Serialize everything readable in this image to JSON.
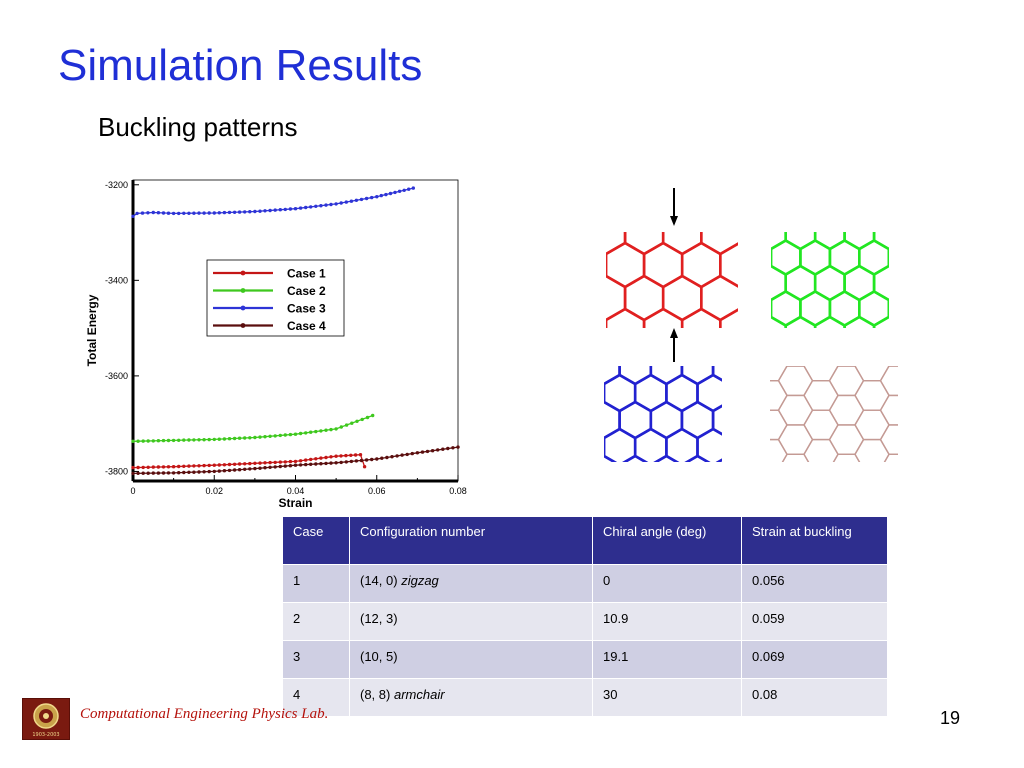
{
  "slide": {
    "title": "Simulation Results",
    "subtitle": "Buckling patterns",
    "page_number": "19",
    "lab_name": "Computational  Engineering Physics Lab.",
    "logo_text": "1903-2003"
  },
  "chart_data": {
    "type": "line",
    "title": "",
    "xlabel": "Strain",
    "ylabel": "Total Energy",
    "xlim": [
      0,
      0.08
    ],
    "ylim": [
      -3820,
      -3190
    ],
    "xticks": [
      "0",
      "0.02",
      "0.04",
      "0.06",
      "0.08"
    ],
    "yticks": [
      "-3200",
      "-3400",
      "-3600",
      "-3800"
    ],
    "legend": "upper-center",
    "grid": false,
    "series": [
      {
        "name": "Case 1",
        "color": "#c41616",
        "points": [
          [
            0,
            -3792
          ],
          [
            0.01,
            -3790
          ],
          [
            0.02,
            -3787
          ],
          [
            0.03,
            -3783
          ],
          [
            0.04,
            -3779
          ],
          [
            0.05,
            -3768
          ],
          [
            0.056,
            -3765
          ],
          [
            0.057,
            -3790
          ]
        ]
      },
      {
        "name": "Case 2",
        "color": "#3ec81e",
        "points": [
          [
            0,
            -3737
          ],
          [
            0.01,
            -3735
          ],
          [
            0.02,
            -3733
          ],
          [
            0.03,
            -3729
          ],
          [
            0.04,
            -3722
          ],
          [
            0.05,
            -3711
          ],
          [
            0.059,
            -3683
          ]
        ]
      },
      {
        "name": "Case 3",
        "color": "#2e34d6",
        "points": [
          [
            0,
            -3266
          ],
          [
            0.001,
            -3260
          ],
          [
            0.005,
            -3258
          ],
          [
            0.01,
            -3260
          ],
          [
            0.02,
            -3259
          ],
          [
            0.03,
            -3256
          ],
          [
            0.04,
            -3250
          ],
          [
            0.05,
            -3240
          ],
          [
            0.06,
            -3225
          ],
          [
            0.069,
            -3207
          ]
        ]
      },
      {
        "name": "Case 4",
        "color": "#5a0e0e",
        "points": [
          [
            0,
            -3804
          ],
          [
            0.01,
            -3803
          ],
          [
            0.02,
            -3800
          ],
          [
            0.03,
            -3794
          ],
          [
            0.04,
            -3787
          ],
          [
            0.05,
            -3782
          ],
          [
            0.06,
            -3774
          ],
          [
            0.07,
            -3761
          ],
          [
            0.08,
            -3749
          ]
        ]
      }
    ]
  },
  "lattice_panels": [
    {
      "name": "case-1-lattice",
      "color": "#e02020",
      "arrows": true
    },
    {
      "name": "case-2-lattice",
      "color": "#22e622",
      "arrows": false
    },
    {
      "name": "case-3-lattice",
      "color": "#2222d0",
      "arrows": false
    },
    {
      "name": "case-4-lattice",
      "color": "#c49a94",
      "arrows": false
    }
  ],
  "table": {
    "headers": [
      "Case",
      "Configuration number",
      "Chiral angle (deg)",
      "Strain at buckling"
    ],
    "rows": [
      {
        "case": "1",
        "config": "(14, 0)",
        "config_type": "zigzag",
        "angle": "0",
        "strain": "0.056"
      },
      {
        "case": "2",
        "config": "(12, 3)",
        "config_type": "",
        "angle": "10.9",
        "strain": "0.059"
      },
      {
        "case": "3",
        "config": "(10, 5)",
        "config_type": "",
        "angle": "19.1",
        "strain": "0.069"
      },
      {
        "case": "4",
        "config": "(8, 8)",
        "config_type": "armchair",
        "angle": "30",
        "strain": "0.08"
      }
    ]
  }
}
